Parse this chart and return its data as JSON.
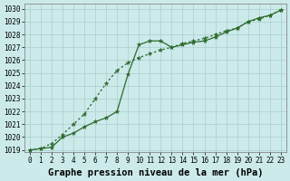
{
  "title": "Graphe pression niveau de la mer (hPa)",
  "x_values": [
    0,
    1,
    2,
    3,
    4,
    5,
    6,
    7,
    8,
    9,
    10,
    11,
    12,
    13,
    14,
    15,
    16,
    17,
    18,
    19,
    20,
    21,
    22,
    23
  ],
  "line_solid": [
    1019.0,
    1019.1,
    1019.2,
    1020.0,
    1020.3,
    1020.8,
    1021.2,
    1021.5,
    1022.0,
    1024.9,
    1027.2,
    1027.5,
    1027.5,
    1027.0,
    1027.2,
    1027.4,
    1027.5,
    1027.8,
    1028.2,
    1028.5,
    1029.0,
    1029.3,
    1029.5,
    1029.9
  ],
  "line_dotted": [
    1019.0,
    1019.1,
    1019.5,
    1020.2,
    1021.0,
    1021.8,
    1023.0,
    1024.2,
    1025.2,
    1025.8,
    1026.2,
    1026.5,
    1026.8,
    1027.0,
    1027.3,
    1027.5,
    1027.7,
    1028.0,
    1028.3,
    1028.5,
    1029.0,
    1029.2,
    1029.5,
    1029.9
  ],
  "ylim_min": 1018.8,
  "ylim_max": 1030.4,
  "yticks": [
    1019,
    1020,
    1021,
    1022,
    1023,
    1024,
    1025,
    1026,
    1027,
    1028,
    1029,
    1030
  ],
  "bg_color": "#cceaea",
  "grid_color": "#aacece",
  "line_color": "#2d6a2d",
  "title_fontsize": 7.5,
  "tick_fontsize": 5.5
}
